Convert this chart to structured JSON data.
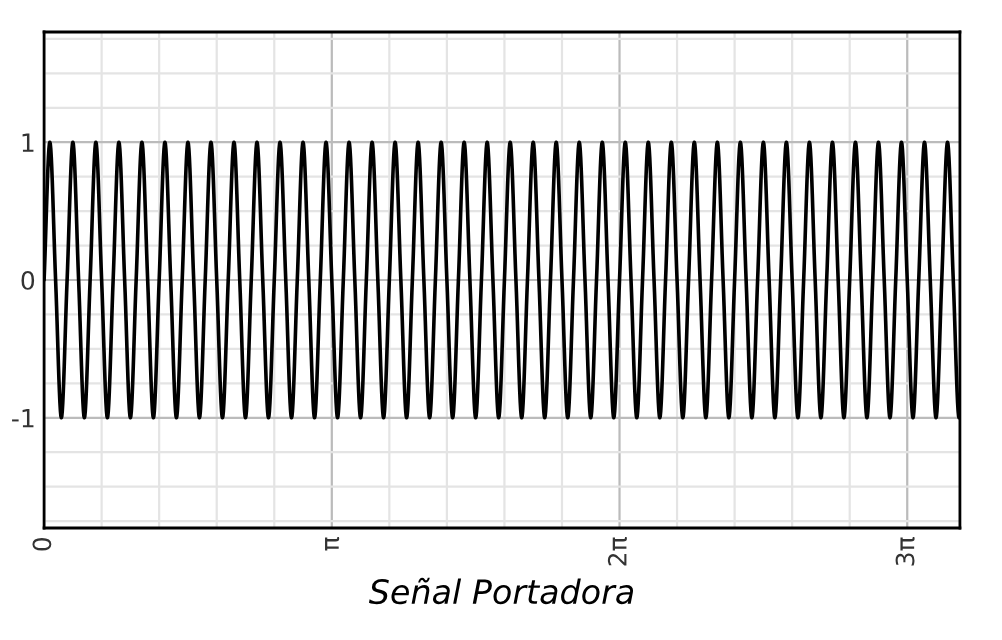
{
  "chart_data": {
    "type": "line",
    "xlabel": "Señal Portadora",
    "x": [
      0.0,
      0.0628,
      0.1257,
      0.1885,
      0.2513,
      0.3142,
      0.377,
      0.4398,
      0.5027,
      0.5655,
      0.6283,
      0.6912,
      0.754,
      0.8168,
      0.8796,
      0.9425,
      1.0053,
      1.0681,
      1.131,
      1.1938,
      1.2566,
      1.3195,
      1.3823,
      1.4451,
      1.508,
      1.5708,
      1.6336,
      1.6965,
      1.7593,
      1.8221,
      1.885,
      1.9478,
      2.0106,
      2.0735,
      2.1363,
      2.1991,
      2.2619,
      2.3248,
      2.3876,
      2.4504,
      2.5133,
      2.5761,
      2.6389,
      2.7018,
      2.7646,
      2.8274,
      2.8903,
      2.9531,
      3.0159,
      3.0788,
      3.1416,
      3.2044,
      3.2673,
      3.3301,
      3.3929,
      3.4558,
      3.5186,
      3.5814,
      3.6442,
      3.7071,
      3.7699,
      3.8327,
      3.8956,
      3.9584,
      4.0212,
      4.0841,
      4.1469,
      4.2097,
      4.2726,
      4.3354,
      4.3982,
      4.4611,
      4.5239,
      4.5867,
      4.6496,
      4.7124,
      4.7752,
      4.8381,
      4.9009,
      4.9637,
      5.0265,
      5.0894,
      5.1522,
      5.215,
      5.2779,
      5.3407,
      5.4035,
      5.4664,
      5.5292,
      5.592,
      5.6549,
      5.7177,
      5.7805,
      5.8434,
      5.9062,
      5.969,
      6.0319,
      6.0947,
      6.1575,
      6.2204,
      6.2832,
      6.346,
      6.4088,
      6.4717,
      6.5345,
      6.5973,
      6.6602,
      6.723,
      6.7858,
      6.8487,
      6.9115,
      6.9743,
      7.0372,
      7.1,
      7.1628,
      7.2257,
      7.2885,
      7.3513,
      7.4142,
      7.477,
      7.5398,
      7.6027,
      7.6655,
      7.7283,
      7.7911,
      7.854,
      7.9168,
      7.9796,
      8.0425,
      8.1053,
      8.1681,
      8.231,
      8.2938,
      8.3566,
      8.4195,
      8.4823,
      8.5451,
      8.608,
      8.6708,
      8.7336,
      8.7965,
      8.8593,
      8.9221,
      8.985,
      9.0478,
      9.1106,
      9.1735,
      9.2363,
      9.2991,
      9.3619,
      9.4248,
      9.4876,
      9.5504,
      9.6133,
      9.6761,
      9.7389,
      9.8018,
      9.8646,
      9.9274,
      9.9903,
      10.0
    ],
    "series": [
      {
        "color": "#000000",
        "values": [
          0,
          1,
          0,
          -1,
          0,
          1,
          0,
          -1,
          0,
          1,
          0,
          -1,
          0,
          1,
          0,
          -1,
          0,
          1,
          0,
          -1,
          0,
          1,
          0,
          -1,
          0,
          1,
          0,
          -1,
          0,
          1,
          0,
          -1,
          0,
          1,
          0,
          -1,
          0,
          1,
          0,
          -1,
          0,
          1,
          0,
          -1,
          0,
          1,
          0,
          -1,
          0,
          1,
          0,
          -1,
          0,
          1,
          0,
          -1,
          0,
          1,
          0,
          -1,
          0,
          1,
          0,
          -1,
          0,
          1,
          0,
          -1,
          0,
          1,
          0,
          -1,
          0,
          1,
          0,
          -1,
          0,
          1,
          0,
          -1,
          0,
          1,
          0,
          -1,
          0,
          1,
          0,
          -1,
          0,
          1,
          0,
          -1,
          0,
          1,
          0,
          -1,
          0,
          1,
          0,
          -1,
          0,
          1,
          0,
          -1,
          0,
          1,
          0,
          -1,
          0,
          1,
          0,
          -1,
          0,
          1,
          0,
          -1,
          0,
          1,
          0,
          -1,
          0,
          1,
          0,
          -1,
          0,
          1,
          0,
          -1,
          0,
          1,
          0,
          -1,
          0,
          1,
          0,
          -1,
          0,
          1,
          0,
          -1,
          0,
          1,
          0,
          -1,
          0,
          1,
          0,
          -1,
          0,
          1,
          0,
          -1,
          0,
          1,
          0,
          -1,
          0,
          1,
          0,
          -1,
          -0.97
        ]
      }
    ],
    "xlim": [
      0,
      10.0
    ],
    "xticks": [
      0,
      {
        "value": 0.6283,
        "label": null
      },
      {
        "value": 1.2566,
        "label": null
      },
      {
        "value": 1.885,
        "label": null
      },
      {
        "value": 2.5133,
        "label": null
      },
      {
        "value": 3.1416,
        "label": "π"
      },
      {
        "value": 3.7699,
        "label": null
      },
      {
        "value": 4.3982,
        "label": null
      },
      {
        "value": 5.0265,
        "label": null
      },
      {
        "value": 5.6549,
        "label": null
      },
      {
        "value": 6.2832,
        "label": "2π"
      },
      {
        "value": 6.9115,
        "label": null
      },
      {
        "value": 7.5398,
        "label": null
      },
      {
        "value": 8.1681,
        "label": null
      },
      {
        "value": 8.7965,
        "label": null
      },
      {
        "value": 9.4248,
        "label": "3π"
      }
    ],
    "ylim": [
      -1.8,
      1.8
    ],
    "yticks": [
      {
        "value": -1.75,
        "label": null
      },
      {
        "value": -1.5,
        "label": null
      },
      {
        "value": -1.25,
        "label": null
      },
      -1,
      {
        "value": -0.75,
        "label": null
      },
      {
        "value": -0.5,
        "label": null
      },
      {
        "value": -0.25,
        "label": null
      },
      0,
      {
        "value": 0.25,
        "label": null
      },
      {
        "value": 0.5,
        "label": null
      },
      {
        "value": 0.75,
        "label": null
      },
      1,
      {
        "value": 1.25,
        "label": null
      },
      {
        "value": 1.5,
        "label": null
      },
      {
        "value": 1.75,
        "label": null
      }
    ],
    "grid": true,
    "line_style": "solid",
    "marker": "none"
  }
}
